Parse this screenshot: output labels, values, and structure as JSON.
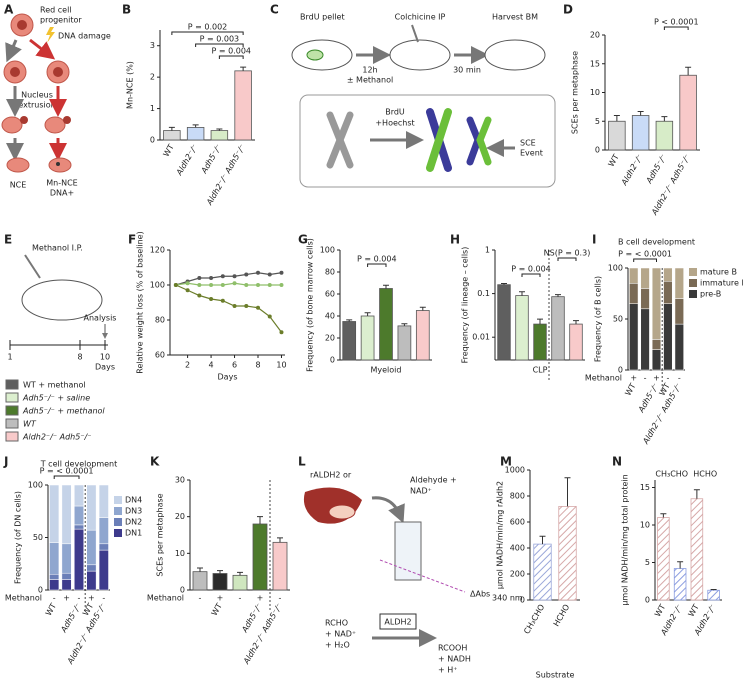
{
  "diagrams": {
    "A": {
      "label": "A",
      "progenitor": [
        "Red cell",
        "progenitor"
      ],
      "damage": "DNA damage",
      "extrusion": [
        "Nucleus",
        "extrusion"
      ],
      "nce": "NCE",
      "mn_nce": [
        "Mn-NCE",
        "DNA+"
      ]
    },
    "C": {
      "label": "C",
      "pellet": "BrdU pellet",
      "ip": "Colchicine IP",
      "harvest": "Harvest BM",
      "time1": "12h",
      "methanol": "± Methanol",
      "time2": "30 min",
      "brdu": "BrdU",
      "hoechst": "+Hoechst",
      "sce": [
        "SCE",
        "Event"
      ]
    },
    "E": {
      "label": "E",
      "ip": "Methanol I.P.",
      "day_ticks": [
        "1",
        "8",
        "10"
      ],
      "days": "Days",
      "analysis": "Analysis",
      "legend": [
        {
          "name": "WT + methanol",
          "color": "#5f5f5f"
        },
        {
          "name": "Adh5⁻/⁻ + saline",
          "color": "#dcefcf"
        },
        {
          "name": "Adh5⁻/⁻ + methanol",
          "color": "#4d7a2c"
        },
        {
          "name": "WT",
          "color": "#bdbdbd"
        },
        {
          "name": "Aldh2⁻/⁻ Adh5⁻/⁻",
          "color": "#f8caca"
        }
      ]
    },
    "L": {
      "label": "L",
      "source": "rALDH2 or",
      "reagent": [
        "Aldehyde +",
        "NAD⁺"
      ],
      "abs": "ΔAbs",
      "abs_sub": "340 nm",
      "reactants": [
        "RCHO",
        "+ NAD⁺",
        "+ H₂O"
      ],
      "enzyme": "ALDH2",
      "products": [
        "RCOOH",
        "+ NADH",
        "+ H⁺"
      ]
    }
  },
  "chart_data": [
    {
      "type": "bar",
      "label": "B",
      "ylabel": "Mn-NCE (%)",
      "categories": [
        "WT",
        "Aldh2⁻/⁻",
        "Adh5⁻/⁻",
        "Aldh2⁻/⁻ Adh5⁻/⁻"
      ],
      "values": [
        0.3,
        0.4,
        0.3,
        2.2
      ],
      "errors": [
        0.1,
        0.08,
        0.05,
        0.12
      ],
      "colors": [
        "#d9d9d9",
        "#c9dbf7",
        "#d7ecc8",
        "#f8c9c9"
      ],
      "ylim": [
        0,
        3.5
      ],
      "yticks": [
        0,
        1,
        2,
        3
      ],
      "annotations": [
        "P = 0.002",
        "P = 0.003",
        "P = 0.004"
      ]
    },
    {
      "type": "bar",
      "label": "D",
      "ylabel": "SCEs per metaphase",
      "categories": [
        "WT",
        "Aldh2⁻/⁻",
        "Adh5⁻/⁻",
        "Aldh2⁻/⁻ Adh5⁻/⁻"
      ],
      "values": [
        5,
        6,
        5,
        13
      ],
      "errors": [
        1,
        0.7,
        0.8,
        1.4
      ],
      "colors": [
        "#d9d9d9",
        "#c9dbf7",
        "#d7ecc8",
        "#f8c9c9"
      ],
      "ylim": [
        0,
        20
      ],
      "yticks": [
        0,
        5,
        10,
        15,
        20
      ],
      "annotations": [
        "P < 0.0001"
      ]
    },
    {
      "type": "line",
      "label": "F",
      "ylabel": "Relative weight loss (% of baseline)",
      "xlabel": "Days",
      "x": [
        1,
        2,
        3,
        4,
        5,
        6,
        7,
        8,
        9,
        10
      ],
      "xlim": [
        0.5,
        10.3
      ],
      "xticks": [
        2,
        4,
        6,
        8,
        10
      ],
      "ylim": [
        60,
        120
      ],
      "yticks": [
        60,
        80,
        100,
        120
      ],
      "series": [
        {
          "color": "#555555",
          "values": [
            100,
            102,
            104,
            104,
            105,
            105,
            106,
            107,
            106,
            107
          ]
        },
        {
          "color": "#8fbf6a",
          "values": [
            100,
            101,
            100,
            100,
            100,
            101,
            100,
            100,
            100,
            100
          ]
        },
        {
          "color": "#6b7d2a",
          "values": [
            100,
            97,
            94,
            92,
            91,
            88,
            88,
            87,
            82,
            73
          ]
        }
      ]
    },
    {
      "type": "bar",
      "label": "G",
      "ylabel": "Frequency (of bone marrow cells)",
      "xlabel": "Myeloid",
      "values": [
        35,
        40,
        65,
        31,
        45
      ],
      "errors": [
        1.5,
        3,
        3,
        2,
        3
      ],
      "colors": [
        "#5f5f5f",
        "#dcefcf",
        "#4d7a2c",
        "#bdbdbd",
        "#f8caca"
      ],
      "ylim": [
        0,
        100
      ],
      "yticks": [
        0,
        20,
        40,
        60,
        80,
        100
      ],
      "annotations": [
        "P = 0.004"
      ]
    },
    {
      "type": "bar",
      "label": "H",
      "ylabel": "Frequency (of lineage – cells)",
      "xlabel": "CLP",
      "log": true,
      "values": [
        0.16,
        0.09,
        0.02,
        0.085,
        0.02
      ],
      "errors": [
        0.01,
        0.02,
        0.006,
        0.01,
        0.004
      ],
      "colors": [
        "#5f5f5f",
        "#dcefcf",
        "#4d7a2c",
        "#bdbdbd",
        "#f8caca"
      ],
      "ylim": [
        0.003,
        1
      ],
      "yticks": [
        0.01,
        0.1,
        1
      ],
      "annotations": [
        "P = 0.004",
        "NS(P = 0.3)"
      ]
    },
    {
      "type": "stacked_bar",
      "label": "I",
      "title": "B cell development",
      "ylabel": "Frequency (of B cells)",
      "methanol_label": "Methanol",
      "methanol": [
        "+",
        "-",
        "+",
        "-",
        "-"
      ],
      "categories": [
        "WT",
        null,
        "Adh5⁻/⁻",
        "WT",
        "Aldh2⁻/⁻ Adh5⁻/⁻"
      ],
      "ylim": [
        0,
        100
      ],
      "yticks": [
        0,
        50,
        100
      ],
      "annotations": [
        "P = < 0.0001"
      ],
      "series": [
        {
          "name": "pre-B",
          "color": "#3a3a3a",
          "values": [
            65,
            60,
            20,
            65,
            45
          ]
        },
        {
          "name": "immature B",
          "color": "#7a6a55",
          "values": [
            20,
            20,
            10,
            22,
            25
          ]
        },
        {
          "name": "mature B",
          "color": "#b5a68a",
          "values": [
            15,
            20,
            70,
            13,
            30
          ]
        }
      ]
    },
    {
      "type": "stacked_bar",
      "label": "J",
      "title": "T cell development",
      "ylabel": "Frequency (of DN cells)",
      "methanol_label": "Methanol",
      "methanol": [
        "-",
        "+",
        "-",
        "+",
        "-"
      ],
      "categories": [
        "WT",
        null,
        "Adh5⁻/⁻",
        "WT",
        "Aldh2⁻/⁻ Adh5⁻/⁻"
      ],
      "ylim": [
        0,
        100
      ],
      "yticks": [
        0,
        50,
        100
      ],
      "annotations": [
        "P = < 0.0001"
      ],
      "series": [
        {
          "name": "DN1",
          "color": "#3d3a8c",
          "values": [
            10,
            10,
            58,
            18,
            38
          ]
        },
        {
          "name": "DN2",
          "color": "#6b7fb8",
          "values": [
            5,
            6,
            4,
            6,
            6
          ]
        },
        {
          "name": "DN3",
          "color": "#8fa6cf",
          "values": [
            30,
            28,
            18,
            33,
            25
          ]
        },
        {
          "name": "DN4",
          "color": "#c5d3e8",
          "values": [
            55,
            56,
            20,
            43,
            31
          ]
        }
      ]
    },
    {
      "type": "bar",
      "label": "K",
      "ylabel": "SCEs per metaphase",
      "methanol_label": "Methanol",
      "methanol": [
        "-",
        "+",
        "-",
        "+",
        "-"
      ],
      "categories": [
        null,
        "WT",
        null,
        "Adh5⁻/⁻",
        "Aldh2⁻/⁻ Adh5⁻/⁻"
      ],
      "values": [
        5,
        4.5,
        4,
        18,
        13
      ],
      "errors": [
        1,
        0.8,
        0.8,
        2,
        1.2
      ],
      "colors": [
        "#bdbdbd",
        "#2b2b2b",
        "#cfe6bf",
        "#4d7a2c",
        "#f8caca"
      ],
      "ylim": [
        0,
        30
      ],
      "yticks": [
        0,
        10,
        20,
        30
      ]
    },
    {
      "type": "bar",
      "label": "M",
      "ylabel": "μmol NADH/min/mg rAldh2",
      "xlabel": "Substrate",
      "categories": [
        "CH₃CHO",
        "HCHO"
      ],
      "values": [
        430,
        720
      ],
      "errors": [
        60,
        220
      ],
      "colors": [
        "#9aa7d9",
        "#d6a8a8"
      ],
      "hatch": true,
      "ylim": [
        0,
        1000
      ],
      "yticks": [
        0,
        200,
        400,
        600,
        800,
        1000
      ]
    },
    {
      "type": "bar",
      "label": "N",
      "ylabel": "μmol NADH/min/mg total protein",
      "groups": [
        "CH₃CHO",
        "HCHO"
      ],
      "categories": [
        "WT",
        "Aldh2⁻/⁻",
        "WT",
        "Aldh2⁻/⁻"
      ],
      "values": [
        11,
        4.2,
        13.5,
        1.3
      ],
      "errors": [
        0.5,
        0.9,
        1.2,
        0.1
      ],
      "colors": [
        "#d6a8a8",
        "#8c9ee0",
        "#d6a8a8",
        "#8c9ee0"
      ],
      "hatch": true,
      "ylim": [
        0,
        16
      ],
      "yticks": [
        0,
        5,
        10,
        15
      ]
    }
  ]
}
